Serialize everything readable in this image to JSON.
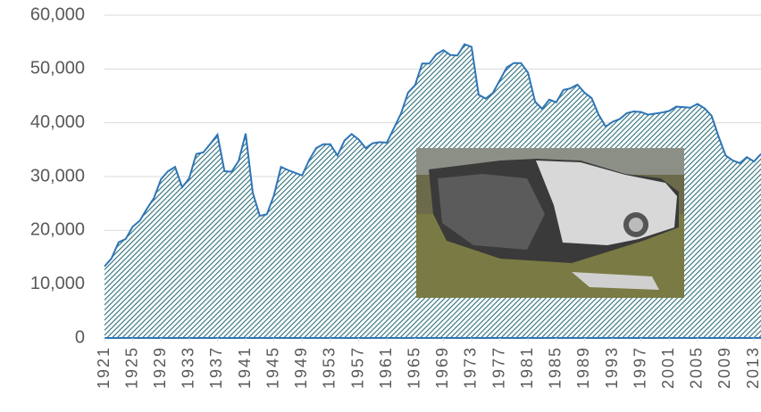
{
  "chart_data": {
    "type": "area",
    "x": [
      1921,
      1922,
      1923,
      1924,
      1925,
      1926,
      1927,
      1928,
      1929,
      1930,
      1931,
      1932,
      1933,
      1934,
      1935,
      1936,
      1937,
      1938,
      1939,
      1940,
      1941,
      1942,
      1943,
      1944,
      1945,
      1946,
      1947,
      1948,
      1949,
      1950,
      1951,
      1952,
      1953,
      1954,
      1955,
      1956,
      1957,
      1958,
      1959,
      1960,
      1961,
      1962,
      1963,
      1964,
      1965,
      1966,
      1967,
      1968,
      1969,
      1970,
      1971,
      1972,
      1973,
      1974,
      1975,
      1976,
      1977,
      1978,
      1979,
      1980,
      1981,
      1982,
      1983,
      1984,
      1985,
      1986,
      1987,
      1988,
      1989,
      1990,
      1991,
      1992,
      1993,
      1994,
      1995,
      1996,
      1997,
      1998,
      1999,
      2000,
      2001,
      2002,
      2003,
      2004,
      2005,
      2006,
      2007,
      2008,
      2009,
      2010,
      2011,
      2012,
      2013,
      2014
    ],
    "values": [
      13300,
      14800,
      17800,
      18400,
      20700,
      21800,
      24000,
      26000,
      29500,
      31000,
      31800,
      28000,
      29700,
      34200,
      34500,
      36100,
      37800,
      31000,
      30900,
      32900,
      38000,
      27000,
      22700,
      23000,
      26500,
      31800,
      31200,
      30700,
      30200,
      33100,
      35300,
      36000,
      36000,
      33900,
      36700,
      37900,
      36900,
      35300,
      36200,
      36400,
      36300,
      39000,
      41700,
      45600,
      47000,
      51000,
      51000,
      52700,
      53500,
      52600,
      52500,
      54600,
      54100,
      45200,
      44500,
      45500,
      47900,
      50300,
      51100,
      51100,
      49300,
      43900,
      42600,
      44300,
      43800,
      46100,
      46400,
      47100,
      45600,
      44600,
      41500,
      39300,
      40200,
      40700,
      41800,
      42100,
      42000,
      41500,
      41700,
      41900,
      42200,
      43000,
      42900,
      42800,
      43500,
      42700,
      41300,
      37400,
      33900,
      33000,
      32500,
      33600,
      32800,
      34200
    ],
    "color": "#2e75b6",
    "fill_color": "#2b6f7a",
    "xlim": [
      1921,
      2014
    ],
    "xticks": [
      1921,
      1925,
      1929,
      1933,
      1937,
      1941,
      1945,
      1949,
      1953,
      1957,
      1961,
      1965,
      1969,
      1973,
      1977,
      1981,
      1985,
      1989,
      1993,
      1997,
      2001,
      2005,
      2009,
      2013
    ],
    "ylim": [
      0,
      60000
    ],
    "yticks": [
      0,
      {
        "value": 10000,
        "label": "10,000"
      },
      {
        "value": 20000,
        "label": "20,000"
      },
      {
        "value": 30000,
        "label": "30,000"
      },
      {
        "value": 40000,
        "label": "40,000"
      },
      {
        "value": 50000,
        "label": "50,000"
      },
      {
        "value": 60000,
        "label": "60,000"
      }
    ],
    "grid": true
  }
}
